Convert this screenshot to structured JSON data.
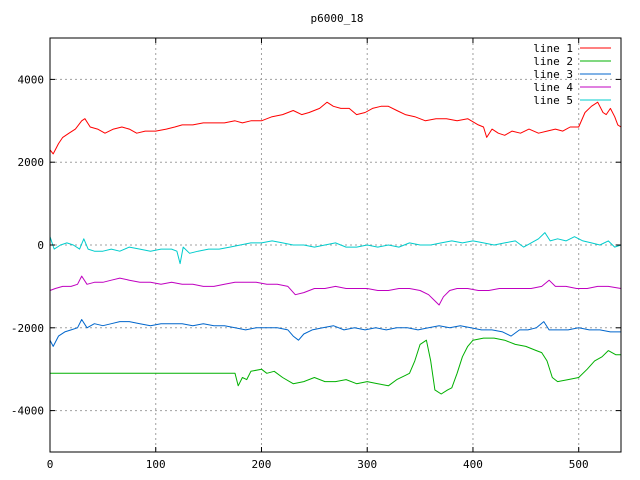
{
  "chart_data": {
    "type": "line",
    "title": "p6000_18",
    "xlabel": "",
    "ylabel": "",
    "xlim": [
      0,
      540
    ],
    "ylim": [
      -5000,
      5000
    ],
    "x_ticks": [
      0,
      100,
      200,
      300,
      400,
      500
    ],
    "y_ticks": [
      -4000,
      -2000,
      0,
      2000,
      4000
    ],
    "grid": true,
    "legend_position": "top-right",
    "series": [
      {
        "name": "line 1",
        "color": "#ff0000",
        "points": [
          [
            0,
            2300
          ],
          [
            3,
            2200
          ],
          [
            8,
            2450
          ],
          [
            12,
            2600
          ],
          [
            18,
            2700
          ],
          [
            24,
            2800
          ],
          [
            30,
            3000
          ],
          [
            33,
            3050
          ],
          [
            38,
            2850
          ],
          [
            45,
            2800
          ],
          [
            52,
            2700
          ],
          [
            60,
            2800
          ],
          [
            68,
            2850
          ],
          [
            75,
            2800
          ],
          [
            82,
            2700
          ],
          [
            90,
            2750
          ],
          [
            100,
            2750
          ],
          [
            110,
            2800
          ],
          [
            118,
            2850
          ],
          [
            125,
            2900
          ],
          [
            135,
            2900
          ],
          [
            145,
            2950
          ],
          [
            155,
            2950
          ],
          [
            165,
            2950
          ],
          [
            175,
            3000
          ],
          [
            182,
            2950
          ],
          [
            190,
            3000
          ],
          [
            200,
            3000
          ],
          [
            210,
            3100
          ],
          [
            220,
            3150
          ],
          [
            230,
            3250
          ],
          [
            238,
            3150
          ],
          [
            245,
            3200
          ],
          [
            255,
            3300
          ],
          [
            262,
            3450
          ],
          [
            268,
            3350
          ],
          [
            275,
            3300
          ],
          [
            283,
            3300
          ],
          [
            290,
            3150
          ],
          [
            298,
            3200
          ],
          [
            305,
            3300
          ],
          [
            313,
            3350
          ],
          [
            320,
            3350
          ],
          [
            328,
            3250
          ],
          [
            336,
            3150
          ],
          [
            345,
            3100
          ],
          [
            355,
            3000
          ],
          [
            365,
            3050
          ],
          [
            375,
            3050
          ],
          [
            385,
            3000
          ],
          [
            395,
            3050
          ],
          [
            405,
            2900
          ],
          [
            410,
            2850
          ],
          [
            413,
            2600
          ],
          [
            418,
            2800
          ],
          [
            424,
            2700
          ],
          [
            430,
            2650
          ],
          [
            437,
            2750
          ],
          [
            445,
            2700
          ],
          [
            453,
            2800
          ],
          [
            462,
            2700
          ],
          [
            470,
            2750
          ],
          [
            478,
            2800
          ],
          [
            485,
            2750
          ],
          [
            492,
            2850
          ],
          [
            500,
            2850
          ],
          [
            506,
            3200
          ],
          [
            512,
            3350
          ],
          [
            518,
            3450
          ],
          [
            523,
            3200
          ],
          [
            526,
            3150
          ],
          [
            530,
            3300
          ],
          [
            534,
            3100
          ],
          [
            537,
            2900
          ],
          [
            540,
            2850
          ]
        ]
      },
      {
        "name": "line 2",
        "color": "#00b000",
        "points": [
          [
            0,
            -3100
          ],
          [
            170,
            -3100
          ],
          [
            175,
            -3100
          ],
          [
            178,
            -3400
          ],
          [
            182,
            -3200
          ],
          [
            186,
            -3250
          ],
          [
            190,
            -3050
          ],
          [
            200,
            -3000
          ],
          [
            205,
            -3100
          ],
          [
            212,
            -3050
          ],
          [
            220,
            -3200
          ],
          [
            230,
            -3350
          ],
          [
            240,
            -3300
          ],
          [
            250,
            -3200
          ],
          [
            260,
            -3300
          ],
          [
            270,
            -3300
          ],
          [
            280,
            -3250
          ],
          [
            290,
            -3350
          ],
          [
            300,
            -3300
          ],
          [
            310,
            -3350
          ],
          [
            320,
            -3400
          ],
          [
            328,
            -3250
          ],
          [
            336,
            -3150
          ],
          [
            340,
            -3100
          ],
          [
            345,
            -2800
          ],
          [
            350,
            -2400
          ],
          [
            356,
            -2300
          ],
          [
            360,
            -2800
          ],
          [
            364,
            -3500
          ],
          [
            370,
            -3600
          ],
          [
            376,
            -3500
          ],
          [
            380,
            -3450
          ],
          [
            385,
            -3100
          ],
          [
            390,
            -2700
          ],
          [
            395,
            -2450
          ],
          [
            400,
            -2300
          ],
          [
            410,
            -2250
          ],
          [
            420,
            -2250
          ],
          [
            430,
            -2300
          ],
          [
            440,
            -2400
          ],
          [
            450,
            -2450
          ],
          [
            460,
            -2550
          ],
          [
            465,
            -2600
          ],
          [
            470,
            -2800
          ],
          [
            475,
            -3200
          ],
          [
            480,
            -3300
          ],
          [
            490,
            -3250
          ],
          [
            500,
            -3200
          ],
          [
            508,
            -3000
          ],
          [
            515,
            -2800
          ],
          [
            522,
            -2700
          ],
          [
            528,
            -2550
          ],
          [
            535,
            -2650
          ],
          [
            540,
            -2650
          ]
        ]
      },
      {
        "name": "line 3",
        "color": "#0066cc",
        "points": [
          [
            0,
            -2300
          ],
          [
            3,
            -2450
          ],
          [
            8,
            -2200
          ],
          [
            14,
            -2100
          ],
          [
            20,
            -2050
          ],
          [
            26,
            -2000
          ],
          [
            30,
            -1800
          ],
          [
            35,
            -2000
          ],
          [
            42,
            -1900
          ],
          [
            50,
            -1950
          ],
          [
            58,
            -1900
          ],
          [
            66,
            -1850
          ],
          [
            75,
            -1850
          ],
          [
            85,
            -1900
          ],
          [
            95,
            -1950
          ],
          [
            105,
            -1900
          ],
          [
            115,
            -1900
          ],
          [
            125,
            -1900
          ],
          [
            135,
            -1950
          ],
          [
            145,
            -1900
          ],
          [
            155,
            -1950
          ],
          [
            165,
            -1950
          ],
          [
            175,
            -2000
          ],
          [
            185,
            -2050
          ],
          [
            195,
            -2000
          ],
          [
            205,
            -2000
          ],
          [
            215,
            -2000
          ],
          [
            225,
            -2050
          ],
          [
            230,
            -2200
          ],
          [
            235,
            -2300
          ],
          [
            240,
            -2150
          ],
          [
            248,
            -2050
          ],
          [
            258,
            -2000
          ],
          [
            268,
            -1950
          ],
          [
            278,
            -2050
          ],
          [
            288,
            -2000
          ],
          [
            298,
            -2050
          ],
          [
            308,
            -2000
          ],
          [
            318,
            -2050
          ],
          [
            328,
            -2000
          ],
          [
            338,
            -2000
          ],
          [
            348,
            -2050
          ],
          [
            358,
            -2000
          ],
          [
            368,
            -1950
          ],
          [
            378,
            -2000
          ],
          [
            388,
            -1950
          ],
          [
            398,
            -2000
          ],
          [
            408,
            -2050
          ],
          [
            418,
            -2050
          ],
          [
            428,
            -2100
          ],
          [
            436,
            -2200
          ],
          [
            444,
            -2050
          ],
          [
            452,
            -2050
          ],
          [
            460,
            -2000
          ],
          [
            467,
            -1850
          ],
          [
            472,
            -2050
          ],
          [
            480,
            -2050
          ],
          [
            490,
            -2050
          ],
          [
            500,
            -2000
          ],
          [
            510,
            -2050
          ],
          [
            520,
            -2050
          ],
          [
            530,
            -2100
          ],
          [
            540,
            -2100
          ]
        ]
      },
      {
        "name": "line 4",
        "color": "#c000c0",
        "points": [
          [
            0,
            -1100
          ],
          [
            5,
            -1050
          ],
          [
            12,
            -1000
          ],
          [
            20,
            -1000
          ],
          [
            26,
            -950
          ],
          [
            30,
            -750
          ],
          [
            35,
            -950
          ],
          [
            42,
            -900
          ],
          [
            50,
            -900
          ],
          [
            58,
            -850
          ],
          [
            66,
            -800
          ],
          [
            75,
            -850
          ],
          [
            85,
            -900
          ],
          [
            95,
            -900
          ],
          [
            105,
            -950
          ],
          [
            115,
            -900
          ],
          [
            125,
            -950
          ],
          [
            135,
            -950
          ],
          [
            145,
            -1000
          ],
          [
            155,
            -1000
          ],
          [
            165,
            -950
          ],
          [
            175,
            -900
          ],
          [
            185,
            -900
          ],
          [
            195,
            -900
          ],
          [
            205,
            -950
          ],
          [
            215,
            -950
          ],
          [
            225,
            -1000
          ],
          [
            232,
            -1200
          ],
          [
            240,
            -1150
          ],
          [
            250,
            -1050
          ],
          [
            260,
            -1050
          ],
          [
            270,
            -1000
          ],
          [
            280,
            -1050
          ],
          [
            290,
            -1050
          ],
          [
            300,
            -1050
          ],
          [
            310,
            -1100
          ],
          [
            320,
            -1100
          ],
          [
            330,
            -1050
          ],
          [
            340,
            -1050
          ],
          [
            350,
            -1100
          ],
          [
            358,
            -1200
          ],
          [
            364,
            -1350
          ],
          [
            368,
            -1450
          ],
          [
            372,
            -1250
          ],
          [
            378,
            -1100
          ],
          [
            385,
            -1050
          ],
          [
            395,
            -1050
          ],
          [
            405,
            -1100
          ],
          [
            415,
            -1100
          ],
          [
            425,
            -1050
          ],
          [
            435,
            -1050
          ],
          [
            445,
            -1050
          ],
          [
            455,
            -1050
          ],
          [
            465,
            -1000
          ],
          [
            472,
            -850
          ],
          [
            478,
            -1000
          ],
          [
            488,
            -1000
          ],
          [
            498,
            -1050
          ],
          [
            508,
            -1050
          ],
          [
            518,
            -1000
          ],
          [
            528,
            -1000
          ],
          [
            540,
            -1050
          ]
        ]
      },
      {
        "name": "line 5",
        "color": "#00cccc",
        "points": [
          [
            0,
            200
          ],
          [
            4,
            -100
          ],
          [
            10,
            0
          ],
          [
            16,
            50
          ],
          [
            22,
            0
          ],
          [
            28,
            -100
          ],
          [
            32,
            150
          ],
          [
            36,
            -100
          ],
          [
            42,
            -150
          ],
          [
            50,
            -150
          ],
          [
            58,
            -100
          ],
          [
            66,
            -150
          ],
          [
            75,
            -50
          ],
          [
            85,
            -100
          ],
          [
            95,
            -150
          ],
          [
            105,
            -100
          ],
          [
            115,
            -100
          ],
          [
            120,
            -150
          ],
          [
            123,
            -450
          ],
          [
            126,
            -50
          ],
          [
            132,
            -200
          ],
          [
            140,
            -150
          ],
          [
            150,
            -100
          ],
          [
            160,
            -100
          ],
          [
            170,
            -50
          ],
          [
            180,
            0
          ],
          [
            190,
            50
          ],
          [
            200,
            50
          ],
          [
            210,
            100
          ],
          [
            220,
            50
          ],
          [
            230,
            0
          ],
          [
            240,
            0
          ],
          [
            250,
            -50
          ],
          [
            260,
            0
          ],
          [
            270,
            50
          ],
          [
            280,
            -50
          ],
          [
            290,
            -50
          ],
          [
            300,
            0
          ],
          [
            310,
            -50
          ],
          [
            320,
            0
          ],
          [
            330,
            -50
          ],
          [
            340,
            50
          ],
          [
            350,
            0
          ],
          [
            360,
            0
          ],
          [
            370,
            50
          ],
          [
            380,
            100
          ],
          [
            390,
            50
          ],
          [
            400,
            100
          ],
          [
            410,
            50
          ],
          [
            420,
            0
          ],
          [
            430,
            50
          ],
          [
            440,
            100
          ],
          [
            448,
            -50
          ],
          [
            455,
            50
          ],
          [
            462,
            150
          ],
          [
            468,
            300
          ],
          [
            473,
            100
          ],
          [
            480,
            150
          ],
          [
            488,
            100
          ],
          [
            496,
            200
          ],
          [
            504,
            100
          ],
          [
            512,
            50
          ],
          [
            520,
            0
          ],
          [
            528,
            100
          ],
          [
            534,
            -50
          ],
          [
            540,
            0
          ]
        ]
      }
    ]
  }
}
